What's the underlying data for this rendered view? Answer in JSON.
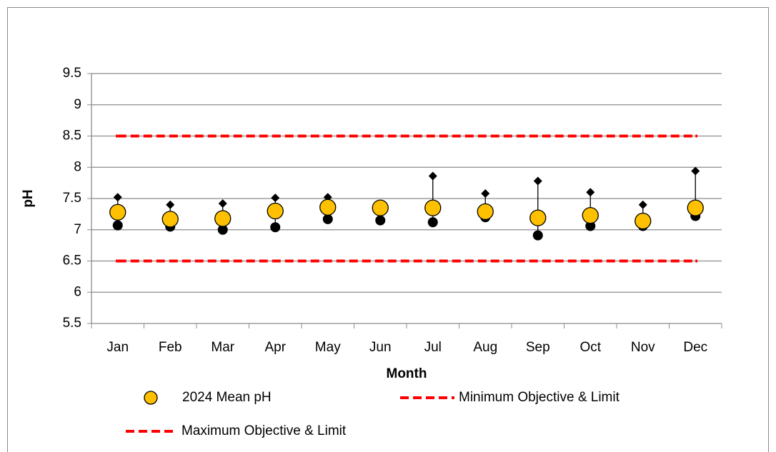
{
  "chart_data": {
    "type": "scatter",
    "xlabel": "Month",
    "ylabel": "pH",
    "categories": [
      "Jan",
      "Feb",
      "Mar",
      "Apr",
      "May",
      "Jun",
      "Jul",
      "Aug",
      "Sep",
      "Oct",
      "Nov",
      "Dec"
    ],
    "series": [
      {
        "name": "2024 Mean pH",
        "color": "#ffc000",
        "values": [
          7.28,
          7.17,
          7.18,
          7.3,
          7.36,
          7.35,
          7.35,
          7.29,
          7.19,
          7.23,
          7.14,
          7.35
        ]
      },
      {
        "name": "Minimum Objective & Limit",
        "color": "#ff0000",
        "values": [
          6.5,
          6.5,
          6.5,
          6.5,
          6.5,
          6.5,
          6.5,
          6.5,
          6.5,
          6.5,
          6.5,
          6.5
        ]
      },
      {
        "name": "Maximum Objective & Limit",
        "color": "#ff0000",
        "values": [
          8.5,
          8.5,
          8.5,
          8.5,
          8.5,
          8.5,
          8.5,
          8.5,
          8.5,
          8.5,
          8.5,
          8.5
        ]
      }
    ],
    "range": {
      "min": [
        7.07,
        7.05,
        7.0,
        7.04,
        7.17,
        7.15,
        7.12,
        7.2,
        6.91,
        7.06,
        7.06,
        7.22
      ],
      "max": [
        7.52,
        7.4,
        7.42,
        7.51,
        7.52,
        7.37,
        7.86,
        7.58,
        7.78,
        7.6,
        7.4,
        7.94
      ]
    },
    "ylim": [
      5.5,
      9.5
    ],
    "yticks": [
      5.5,
      6,
      6.5,
      7,
      7.5,
      8,
      8.5,
      9,
      9.5
    ],
    "grid": true
  }
}
